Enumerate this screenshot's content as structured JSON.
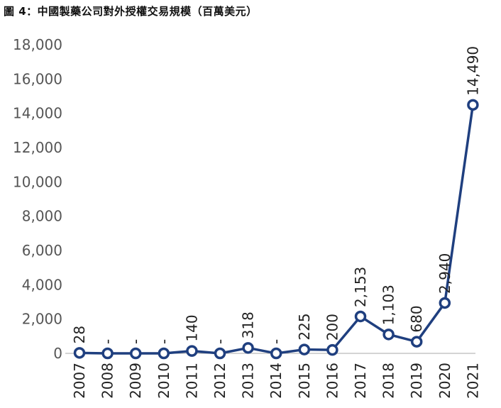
{
  "title": "圖 4：中國製藥公司對外授權交易規模（百萬美元）",
  "colors": {
    "series": "#1f3f7f",
    "axis": "#aaaaaa",
    "marker_fill": "#ffffff"
  },
  "chart_data": {
    "type": "line",
    "title": "圖 4：中國製藥公司對外授權交易規模（百萬美元）",
    "xlabel": "",
    "ylabel": "",
    "ylim": [
      0,
      18000
    ],
    "yticks": [
      "0",
      "2,000",
      "4,000",
      "6,000",
      "8,000",
      "10,000",
      "12,000",
      "14,000",
      "16,000",
      "18,000"
    ],
    "grid": false,
    "categories": [
      "2007",
      "2008",
      "2009",
      "2010",
      "2011",
      "2012",
      "2013",
      "2014",
      "2015",
      "2016",
      "2017",
      "2018",
      "2019",
      "2020",
      "2021"
    ],
    "values": [
      28,
      0,
      0,
      0,
      140,
      0,
      318,
      0,
      225,
      200,
      2153,
      1103,
      680,
      2940,
      14490
    ],
    "labels": [
      "28",
      "-",
      "-",
      "-",
      "140",
      "-",
      "318",
      "-",
      "225",
      "200",
      "2,153",
      "1,103",
      "680",
      "2,940",
      "14,490"
    ]
  }
}
